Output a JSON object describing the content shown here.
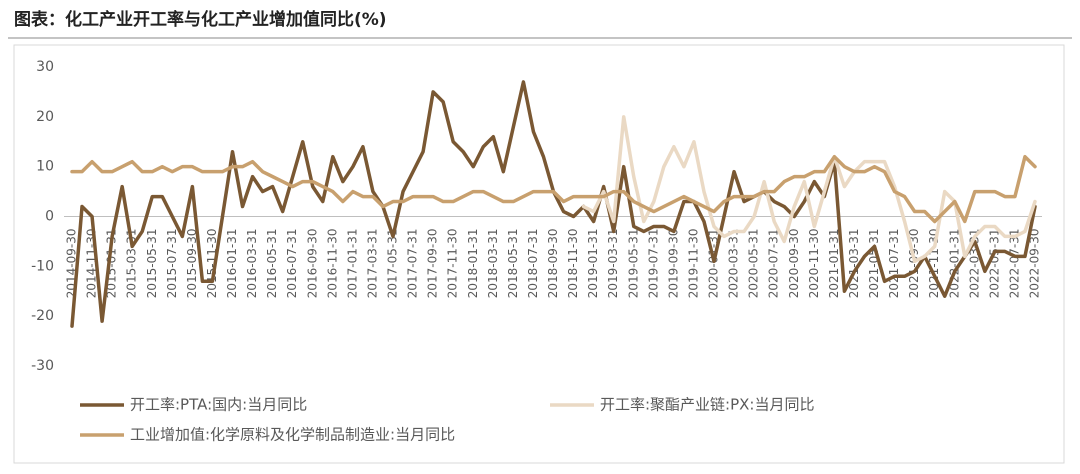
{
  "chart_data": {
    "type": "line",
    "title": "图表：化工产业开工率与化工产业增加值同比(%)",
    "categories": [
      "2014-09-30",
      null,
      "2014-11-30",
      null,
      "2015-01-31",
      null,
      "2015-03-31",
      null,
      "2015-05-31",
      null,
      "2015-07-31",
      null,
      "2015-09-30",
      null,
      "2015-11-30",
      null,
      "2016-01-31",
      null,
      "2016-03-31",
      null,
      "2016-05-31",
      null,
      "2016-07-31",
      null,
      "2016-09-30",
      null,
      "2016-11-30",
      null,
      "2017-01-31",
      null,
      "2017-03-31",
      null,
      "2017-05-31",
      null,
      "2017-07-31",
      null,
      "2017-09-30",
      null,
      "2017-11-30",
      null,
      "2018-01-31",
      null,
      "2018-03-31",
      null,
      "2018-05-31",
      null,
      "2018-07-31",
      null,
      "2018-09-30",
      null,
      "2018-11-30",
      null,
      "2019-01-31",
      null,
      "2019-03-31",
      null,
      "2019-05-31",
      null,
      "2019-07-31",
      null,
      "2019-09-30",
      null,
      "2019-11-30",
      null,
      "2020-01-31",
      null,
      "2020-03-31",
      null,
      "2020-05-31",
      null,
      "2020-07-31",
      null,
      "2020-09-30",
      null,
      "2020-11-30",
      null,
      "2021-01-31",
      null,
      "2021-03-31",
      null,
      "2021-05-31",
      null,
      "2021-07-31",
      null,
      "2021-09-30",
      null,
      "2021-11-30",
      null,
      "2022-01-31",
      null,
      "2022-03-31",
      null,
      "2022-05-31",
      null,
      "2022-07-31",
      null,
      "2022-09-30"
    ],
    "series": [
      {
        "name": "开工率:PTA:国内:当月同比",
        "color": "#7a5833",
        "values": [
          -22,
          2,
          0,
          -21,
          -4,
          6,
          -6,
          -3,
          4,
          4,
          0,
          -4,
          6,
          -13,
          -13,
          0,
          13,
          2,
          8,
          5,
          6,
          1,
          8,
          15,
          6,
          3,
          12,
          7,
          10,
          14,
          5,
          2,
          -4,
          5,
          9,
          13,
          25,
          23,
          15,
          13,
          10,
          14,
          16,
          9,
          18,
          27,
          17,
          12,
          5,
          1,
          0,
          2,
          -1,
          6,
          -3,
          10,
          -2,
          -3,
          -2,
          -2,
          -3,
          3,
          3,
          -1,
          -9,
          0,
          9,
          3,
          4,
          5,
          3,
          2,
          0,
          3,
          7,
          4,
          11,
          -15,
          -11,
          -8,
          -6,
          -13,
          -12,
          -12,
          -11,
          -8,
          -12,
          -16,
          -11,
          -8,
          -5,
          -11,
          -7,
          -7,
          -8,
          -8,
          2
        ]
      },
      {
        "name": "开工率:聚酯产业链:PX:当月同比",
        "color": "#ead9c4",
        "values": [
          null,
          null,
          null,
          null,
          null,
          null,
          null,
          null,
          null,
          null,
          null,
          null,
          null,
          null,
          null,
          null,
          null,
          null,
          null,
          null,
          null,
          null,
          null,
          null,
          null,
          null,
          null,
          null,
          null,
          null,
          null,
          null,
          null,
          null,
          null,
          null,
          null,
          null,
          null,
          null,
          null,
          null,
          null,
          null,
          null,
          null,
          null,
          null,
          null,
          null,
          null,
          2,
          1,
          5,
          -1,
          20,
          8,
          -1,
          3,
          10,
          14,
          10,
          15,
          5,
          -2,
          -4,
          -3,
          -3,
          0,
          7,
          -1,
          -5,
          2,
          7,
          -2,
          5,
          12,
          6,
          9,
          11,
          11,
          11,
          6,
          -1,
          -9,
          -8,
          -6,
          5,
          3,
          -8,
          -4,
          -2,
          -2,
          -4,
          -4,
          -3,
          3
        ]
      },
      {
        "name": "工业增加值:化学原料及化学制品制造业:当月同比",
        "color": "#c8a06e",
        "values": [
          9,
          9,
          11,
          9,
          9,
          10,
          11,
          9,
          9,
          10,
          9,
          10,
          10,
          9,
          9,
          9,
          10,
          10,
          11,
          9,
          8,
          7,
          6,
          7,
          7,
          6,
          5,
          3,
          5,
          4,
          4,
          2,
          3,
          3,
          4,
          4,
          4,
          3,
          3,
          4,
          5,
          5,
          4,
          3,
          3,
          4,
          5,
          5,
          5,
          3,
          4,
          4,
          4,
          4,
          5,
          5,
          3,
          2,
          1,
          2,
          3,
          4,
          3,
          2,
          1,
          3,
          4,
          4,
          4,
          5,
          5,
          7,
          8,
          8,
          9,
          9,
          12,
          10,
          9,
          9,
          10,
          9,
          5,
          4,
          1,
          1,
          -1,
          1,
          3,
          -1,
          5,
          5,
          5,
          4,
          4,
          12,
          10
        ]
      }
    ],
    "ylim": [
      -30,
      30
    ],
    "yticks": [
      -30,
      -20,
      -10,
      0,
      10,
      20,
      30
    ],
    "grid": false,
    "legend": "bottom"
  }
}
